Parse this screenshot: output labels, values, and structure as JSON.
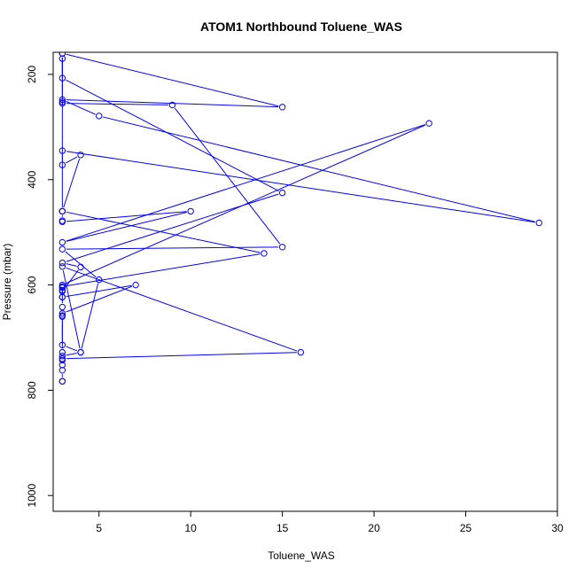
{
  "chart_data": {
    "type": "line",
    "title": "ATOM1 Northbound Toluene_WAS",
    "xlabel": "Toluene_WAS",
    "ylabel": "Pressure (mbar)",
    "xlim": [
      2.5,
      30
    ],
    "ylim": [
      1030,
      158
    ],
    "y_reversed": true,
    "x_ticks": [
      5,
      10,
      15,
      20,
      25,
      30
    ],
    "y_ticks": [
      200,
      400,
      600,
      800,
      1000
    ],
    "grid": false,
    "legend": "none",
    "series_color": "#0000ff",
    "marker": "open-circle",
    "series": [
      {
        "x": [
          3,
          3,
          3,
          3,
          3,
          3,
          4,
          3,
          3,
          3,
          7,
          3,
          3,
          4,
          3,
          15,
          3,
          3,
          15,
          3,
          5,
          29,
          3,
          3,
          4,
          3,
          3,
          3,
          3,
          3,
          3,
          9,
          15,
          3,
          5,
          4,
          3,
          16,
          3,
          3,
          3,
          3,
          3,
          23,
          3,
          10,
          3,
          3,
          3,
          14,
          3,
          3,
          3,
          3
        ],
        "y": [
          783,
          783,
          762,
          752,
          743,
          735,
          728,
          714,
          660,
          654,
          600,
          623,
          612,
          566,
          558,
          425,
          207,
          160,
          262,
          248,
          279,
          482,
          345,
          372,
          353,
          460,
          460,
          160,
          170,
          252,
          255,
          258,
          528,
          532,
          590,
          728,
          565,
          728,
          740,
          728,
          658,
          642,
          600,
          293,
          519,
          460,
          480,
          478,
          460,
          540,
          603,
          623,
          610,
          605
        ]
      }
    ]
  }
}
